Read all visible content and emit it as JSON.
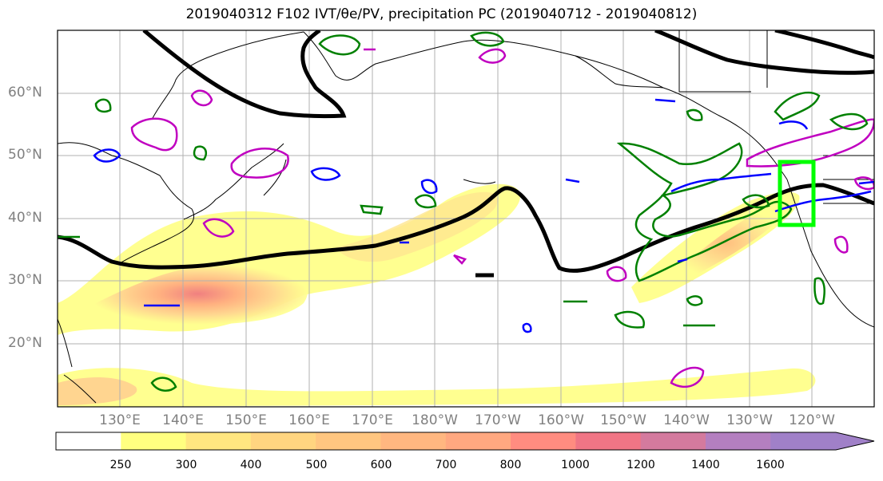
{
  "title": "2019040312 F102 IVT/θe/PV, precipitation PC (2019040712 - 2019040812)",
  "lat_labels": [
    "60°N",
    "50°N",
    "40°N",
    "30°N",
    "20°N"
  ],
  "lon_labels": [
    "130°E",
    "140°E",
    "150°E",
    "160°E",
    "170°E",
    "180°W",
    "170°W",
    "160°W",
    "150°W",
    "140°W",
    "130°W",
    "120°W"
  ],
  "colorbar": {
    "ticks": [
      "250",
      "300",
      "400",
      "500",
      "600",
      "700",
      "800",
      "1000",
      "1200",
      "1400",
      "1600"
    ],
    "colors": [
      "#ffffff",
      "#ffff80",
      "#ffe680",
      "#ffd580",
      "#ffc680",
      "#ffb780",
      "#ffa880",
      "#ff8c80",
      "#f07585",
      "#d47a9e",
      "#b47fc0",
      "#a080c8"
    ]
  },
  "legend_colors": {
    "theta_e_contour": "#000000",
    "pv_contour": "#c000c0",
    "positive_pc_contour": "#008000",
    "negative_pc_contour": "#0000ff",
    "box": "#00ff00"
  }
}
